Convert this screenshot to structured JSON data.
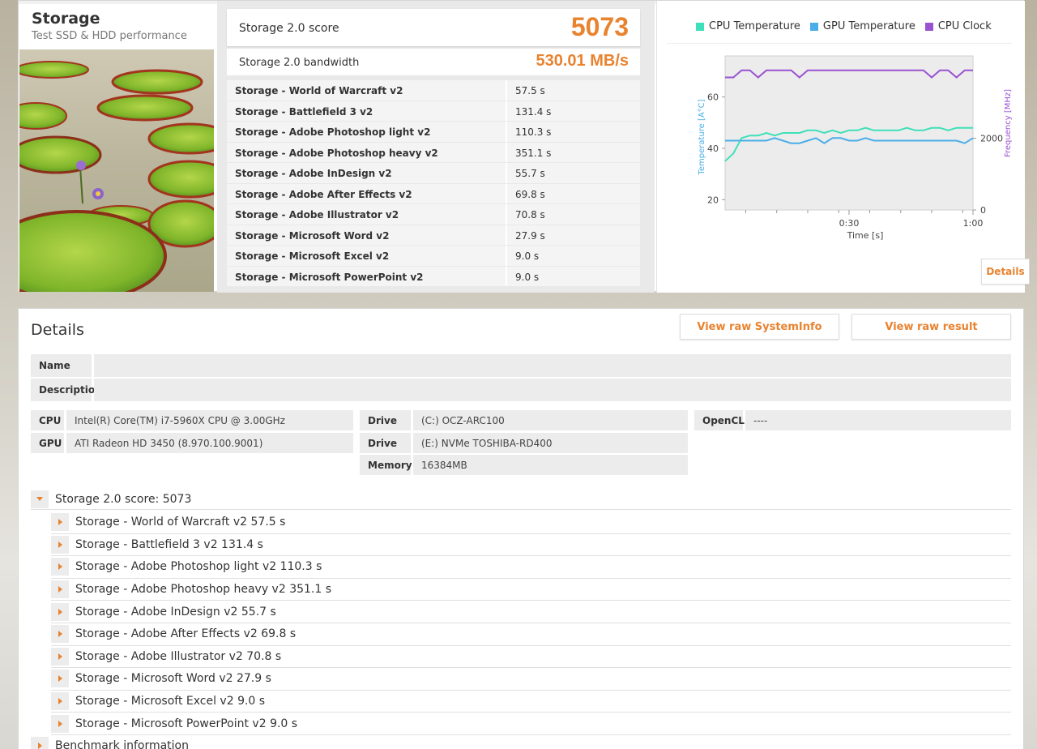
{
  "test": {
    "title": "Storage",
    "subtitle": "Test SSD & HDD performance"
  },
  "score": {
    "label": "Storage 2.0 score",
    "value": "5073",
    "bandwidth_label": "Storage 2.0 bandwidth",
    "bandwidth_value": "530.01 MB/s"
  },
  "subtests": [
    {
      "name": "Storage - World of Warcraft v2",
      "value": "57.5 s"
    },
    {
      "name": "Storage - Battlefield 3 v2",
      "value": "131.4 s"
    },
    {
      "name": "Storage - Adobe Photoshop light v2",
      "value": "110.3 s"
    },
    {
      "name": "Storage - Adobe Photoshop heavy v2",
      "value": "351.1 s"
    },
    {
      "name": "Storage - Adobe InDesign v2",
      "value": "55.7 s"
    },
    {
      "name": "Storage - Adobe After Effects v2",
      "value": "69.8 s"
    },
    {
      "name": "Storage - Adobe Illustrator v2",
      "value": "70.8 s"
    },
    {
      "name": "Storage - Microsoft Word v2",
      "value": "27.9 s"
    },
    {
      "name": "Storage - Microsoft Excel v2",
      "value": "9.0 s"
    },
    {
      "name": "Storage - Microsoft PowerPoint v2",
      "value": "9.0 s"
    }
  ],
  "chart": {
    "details_label": "Details"
  },
  "chart_data": {
    "type": "line",
    "xlabel": "Time [s]",
    "ylabel": "Temperature [A°C]",
    "y2label": "Frequency [MHz]",
    "x_ticks": [
      "0:30",
      "1:00"
    ],
    "y_ticks": [
      "20",
      "40",
      "60"
    ],
    "y2_ticks": [
      "0",
      "2000"
    ],
    "ylim": [
      16,
      76
    ],
    "y2lim": [
      0,
      4300
    ],
    "xlim": [
      0,
      60
    ],
    "grid": true,
    "legend_position": "top",
    "series": [
      {
        "name": "CPU Temperature",
        "color": "#3ee0b9",
        "axis": "left",
        "x": [
          0,
          2,
          4,
          6,
          8,
          10,
          12,
          14,
          16,
          18,
          20,
          22,
          24,
          26,
          28,
          30,
          32,
          34,
          36,
          38,
          40,
          42,
          44,
          46,
          48,
          50,
          52,
          54,
          56,
          58,
          60
        ],
        "y": [
          35,
          38,
          44,
          45,
          45,
          46,
          45,
          46,
          46,
          46,
          47,
          47,
          46,
          47,
          46,
          47,
          47,
          48,
          47,
          47,
          47,
          47,
          48,
          47,
          47,
          48,
          48,
          47,
          48,
          48,
          48
        ]
      },
      {
        "name": "GPU Temperature",
        "color": "#4aaee8",
        "axis": "left",
        "x": [
          0,
          2,
          4,
          6,
          8,
          10,
          12,
          14,
          16,
          18,
          20,
          22,
          24,
          26,
          28,
          30,
          32,
          34,
          36,
          38,
          40,
          42,
          44,
          46,
          48,
          50,
          52,
          54,
          56,
          58,
          60
        ],
        "y": [
          43,
          43,
          43,
          43,
          43,
          43,
          44,
          43,
          42,
          42,
          43,
          44,
          42,
          44,
          44,
          43,
          43,
          44,
          43,
          43,
          43,
          43,
          43,
          43,
          43,
          43,
          43,
          43,
          43,
          42,
          44
        ]
      },
      {
        "name": "CPU Clock",
        "color": "#9a52d1",
        "axis": "right",
        "x": [
          0,
          2,
          4,
          6,
          8,
          10,
          12,
          14,
          16,
          18,
          20,
          22,
          24,
          26,
          28,
          30,
          32,
          34,
          36,
          38,
          40,
          42,
          44,
          46,
          48,
          50,
          52,
          54,
          56,
          58,
          60
        ],
        "y": [
          3700,
          3700,
          3900,
          3900,
          3700,
          3900,
          3900,
          3900,
          3900,
          3700,
          3900,
          3900,
          3900,
          3900,
          3900,
          3900,
          3900,
          3900,
          3900,
          3900,
          3900,
          3900,
          3900,
          3900,
          3900,
          3700,
          3900,
          3900,
          3700,
          3900,
          3900
        ]
      }
    ]
  },
  "details": {
    "title": "Details",
    "view_systeminfo": "View raw SystemInfo",
    "view_result": "View raw result",
    "name_label": "Name",
    "name_value": "",
    "description_label": "Description",
    "description_value": "",
    "cpu_label": "CPU",
    "cpu_value": "Intel(R) Core(TM) i7-5960X CPU @ 3.00GHz",
    "gpu_label": "GPU",
    "gpu_value": "ATI Radeon HD 3450 (8.970.100.9001)",
    "drive1_label": "Drive",
    "drive1_value": "(C:) OCZ-ARC100",
    "drive2_label": "Drive",
    "drive2_value": "(E:) NVMe TOSHIBA-RD400",
    "memory_label": "Memory",
    "memory_value": "16384MB",
    "opencl_label": "OpenCL",
    "opencl_value": "----"
  },
  "tree": {
    "root": "Storage 2.0 score: 5073",
    "items": [
      "Storage - World of Warcraft v2 57.5 s",
      "Storage - Battlefield 3 v2 131.4 s",
      "Storage - Adobe Photoshop light v2 110.3 s",
      "Storage - Adobe Photoshop heavy v2 351.1 s",
      "Storage - Adobe InDesign v2 55.7 s",
      "Storage - Adobe After Effects v2 69.8 s",
      "Storage - Adobe Illustrator v2 70.8 s",
      "Storage - Microsoft Word v2 27.9 s",
      "Storage - Microsoft Excel v2 9.0 s",
      "Storage - Microsoft PowerPoint v2 9.0 s"
    ],
    "benchmark_info": "Benchmark information"
  }
}
